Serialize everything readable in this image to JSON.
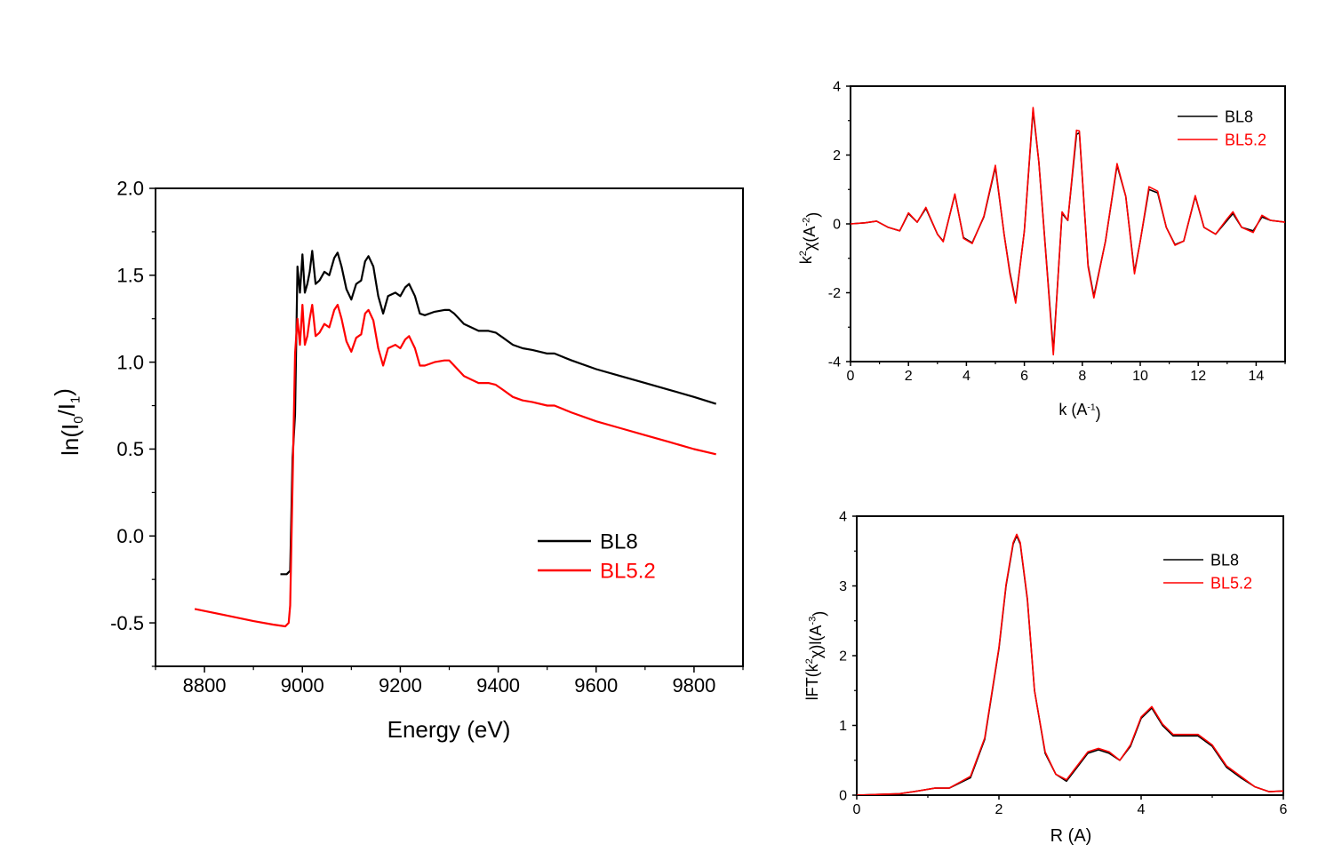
{
  "chart_data": [
    {
      "type": "line",
      "title": "",
      "xlabel": "Energy (eV)",
      "ylabel_parts": [
        "ln(I",
        "0",
        "/I",
        "1",
        ")"
      ],
      "xlim": [
        8700,
        9900
      ],
      "ylim": [
        -0.75,
        2.0
      ],
      "xticks": [
        "8800",
        "9000",
        "9200",
        "9400",
        "9600",
        "9800"
      ],
      "yticks": [
        "-0.5",
        "0.0",
        "0.5",
        "1.0",
        "1.5",
        "2.0"
      ],
      "legend_position": "bottom-right",
      "series": [
        {
          "name": "BL8",
          "color": "#000000",
          "x": [
            8955,
            8968,
            8975,
            8980,
            8985,
            8990,
            8995,
            9000,
            9005,
            9010,
            9015,
            9020,
            9027,
            9035,
            9045,
            9055,
            9065,
            9072,
            9080,
            9090,
            9100,
            9110,
            9120,
            9128,
            9135,
            9145,
            9155,
            9165,
            9175,
            9190,
            9200,
            9210,
            9218,
            9230,
            9240,
            9250,
            9270,
            9290,
            9300,
            9310,
            9320,
            9330,
            9345,
            9360,
            9380,
            9395,
            9410,
            9430,
            9450,
            9470,
            9500,
            9515,
            9550,
            9600,
            9650,
            9700,
            9750,
            9800,
            9845
          ],
          "y": [
            -0.22,
            -0.22,
            -0.2,
            0.45,
            0.7,
            1.55,
            1.4,
            1.62,
            1.4,
            1.45,
            1.52,
            1.64,
            1.45,
            1.47,
            1.52,
            1.5,
            1.6,
            1.63,
            1.55,
            1.42,
            1.36,
            1.45,
            1.47,
            1.58,
            1.61,
            1.55,
            1.38,
            1.28,
            1.38,
            1.4,
            1.38,
            1.43,
            1.45,
            1.38,
            1.28,
            1.27,
            1.29,
            1.3,
            1.3,
            1.28,
            1.25,
            1.22,
            1.2,
            1.18,
            1.18,
            1.17,
            1.14,
            1.1,
            1.08,
            1.07,
            1.05,
            1.05,
            1.01,
            0.96,
            0.92,
            0.88,
            0.84,
            0.8,
            0.76
          ]
        },
        {
          "name": "BL5.2",
          "color": "#ff0000",
          "x": [
            8780,
            8850,
            8900,
            8940,
            8965,
            8972,
            8975,
            8980,
            8985,
            8990,
            8995,
            9000,
            9005,
            9010,
            9015,
            9020,
            9027,
            9035,
            9045,
            9055,
            9065,
            9072,
            9080,
            9090,
            9100,
            9110,
            9120,
            9128,
            9135,
            9145,
            9155,
            9165,
            9175,
            9190,
            9200,
            9210,
            9218,
            9230,
            9240,
            9250,
            9270,
            9290,
            9300,
            9310,
            9320,
            9330,
            9345,
            9360,
            9380,
            9395,
            9410,
            9430,
            9450,
            9470,
            9500,
            9515,
            9550,
            9600,
            9650,
            9700,
            9750,
            9800,
            9845
          ],
          "y": [
            -0.42,
            -0.46,
            -0.49,
            -0.51,
            -0.52,
            -0.5,
            -0.4,
            0.3,
            1.05,
            1.25,
            1.1,
            1.33,
            1.1,
            1.15,
            1.25,
            1.33,
            1.15,
            1.17,
            1.22,
            1.2,
            1.3,
            1.33,
            1.25,
            1.12,
            1.06,
            1.14,
            1.16,
            1.28,
            1.3,
            1.24,
            1.08,
            0.98,
            1.08,
            1.1,
            1.08,
            1.13,
            1.15,
            1.08,
            0.98,
            0.98,
            1.0,
            1.01,
            1.01,
            0.98,
            0.95,
            0.92,
            0.9,
            0.88,
            0.88,
            0.87,
            0.84,
            0.8,
            0.78,
            0.77,
            0.75,
            0.75,
            0.71,
            0.66,
            0.62,
            0.58,
            0.54,
            0.5,
            0.47
          ]
        }
      ]
    },
    {
      "type": "line",
      "title": "",
      "xlabel_parts": [
        "k (A",
        "-1",
        ")"
      ],
      "ylabel_parts": [
        "k",
        "2",
        "χ(A",
        "-2",
        ")"
      ],
      "xlim": [
        0,
        15
      ],
      "ylim": [
        -4,
        4
      ],
      "xticks": [
        "0",
        "2",
        "4",
        "6",
        "8",
        "10",
        "12",
        "14"
      ],
      "yticks": [
        "-4",
        "-2",
        "0",
        "2",
        "4"
      ],
      "legend_position": "top-right",
      "series": [
        {
          "name": "BL8",
          "color": "#000000",
          "x": [
            0,
            0.5,
            0.9,
            1.3,
            1.7,
            2.0,
            2.3,
            2.6,
            3.0,
            3.2,
            3.6,
            3.9,
            4.2,
            4.6,
            5.0,
            5.3,
            5.5,
            5.7,
            6.0,
            6.3,
            6.5,
            6.8,
            7.0,
            7.3,
            7.5,
            7.8,
            7.9,
            8.2,
            8.4,
            8.8,
            9.2,
            9.5,
            9.8,
            10.0,
            10.3,
            10.6,
            10.9,
            11.2,
            11.5,
            11.9,
            12.2,
            12.6,
            13.0,
            13.2,
            13.5,
            13.9,
            14.2,
            14.5,
            15.0
          ],
          "y": [
            0,
            0.03,
            0.08,
            -0.1,
            -0.2,
            0.3,
            0.05,
            0.45,
            -0.3,
            -0.5,
            0.85,
            -0.4,
            -0.55,
            0.2,
            1.65,
            -0.3,
            -1.4,
            -2.25,
            -0.2,
            3.3,
            1.8,
            -1.5,
            -3.7,
            0.3,
            0.1,
            2.6,
            2.65,
            -1.2,
            -2.1,
            -0.5,
            1.7,
            0.8,
            -1.4,
            -0.5,
            1.0,
            0.9,
            -0.1,
            -0.6,
            -0.5,
            0.8,
            -0.1,
            -0.3,
            0.1,
            0.3,
            -0.1,
            -0.2,
            0.2,
            0.1,
            0.05
          ]
        },
        {
          "name": "BL5.2",
          "color": "#ff0000",
          "x": [
            0,
            0.5,
            0.9,
            1.3,
            1.7,
            2.0,
            2.3,
            2.6,
            3.0,
            3.2,
            3.6,
            3.9,
            4.2,
            4.6,
            5.0,
            5.3,
            5.5,
            5.7,
            6.0,
            6.3,
            6.5,
            6.8,
            7.0,
            7.3,
            7.5,
            7.8,
            7.9,
            8.2,
            8.4,
            8.8,
            9.2,
            9.5,
            9.8,
            10.0,
            10.3,
            10.6,
            10.9,
            11.2,
            11.5,
            11.9,
            12.2,
            12.6,
            13.0,
            13.2,
            13.5,
            13.9,
            14.2,
            14.5,
            15.0
          ],
          "y": [
            0,
            0.03,
            0.08,
            -0.1,
            -0.2,
            0.32,
            0.05,
            0.48,
            -0.3,
            -0.52,
            0.87,
            -0.42,
            -0.57,
            0.22,
            1.7,
            -0.3,
            -1.45,
            -2.3,
            -0.2,
            3.38,
            1.8,
            -1.55,
            -3.8,
            0.35,
            0.1,
            2.72,
            2.7,
            -1.25,
            -2.15,
            -0.5,
            1.75,
            0.8,
            -1.45,
            -0.5,
            1.08,
            0.95,
            -0.1,
            -0.62,
            -0.5,
            0.82,
            -0.1,
            -0.3,
            0.15,
            0.35,
            -0.1,
            -0.25,
            0.25,
            0.1,
            0.05
          ]
        }
      ]
    },
    {
      "type": "line",
      "title": "",
      "xlabel": "R (A)",
      "ylabel_parts": [
        "lFT(k",
        "2",
        "χ)l(A",
        "-3",
        ")"
      ],
      "xlim": [
        0,
        6
      ],
      "ylim": [
        0,
        4
      ],
      "xticks": [
        "0",
        "2",
        "4",
        "6"
      ],
      "yticks": [
        "0",
        "1",
        "2",
        "3",
        "4"
      ],
      "legend_position": "top-right",
      "series": [
        {
          "name": "BL8",
          "color": "#000000",
          "x": [
            0,
            0.3,
            0.6,
            0.8,
            1.1,
            1.3,
            1.6,
            1.8,
            2.0,
            2.1,
            2.2,
            2.25,
            2.3,
            2.4,
            2.5,
            2.65,
            2.8,
            2.95,
            3.1,
            3.25,
            3.4,
            3.55,
            3.7,
            3.85,
            4.0,
            4.15,
            4.3,
            4.45,
            4.6,
            4.8,
            5.0,
            5.2,
            5.4,
            5.6,
            5.8,
            6.0
          ],
          "y": [
            0,
            0.01,
            0.02,
            0.05,
            0.1,
            0.1,
            0.25,
            0.8,
            2.1,
            3.0,
            3.6,
            3.72,
            3.6,
            2.8,
            1.5,
            0.6,
            0.3,
            0.2,
            0.4,
            0.6,
            0.65,
            0.6,
            0.5,
            0.7,
            1.1,
            1.25,
            1.0,
            0.85,
            0.85,
            0.85,
            0.7,
            0.4,
            0.25,
            0.12,
            0.05,
            0.06
          ]
        },
        {
          "name": "BL5.2",
          "color": "#ff0000",
          "x": [
            0,
            0.3,
            0.6,
            0.8,
            1.1,
            1.3,
            1.6,
            1.8,
            2.0,
            2.1,
            2.2,
            2.25,
            2.3,
            2.4,
            2.5,
            2.65,
            2.8,
            2.95,
            3.1,
            3.25,
            3.4,
            3.55,
            3.7,
            3.85,
            4.0,
            4.15,
            4.3,
            4.45,
            4.6,
            4.8,
            5.0,
            5.2,
            5.4,
            5.6,
            5.8,
            6.0
          ],
          "y": [
            0,
            0.01,
            0.02,
            0.05,
            0.1,
            0.1,
            0.27,
            0.82,
            2.12,
            3.02,
            3.62,
            3.74,
            3.62,
            2.82,
            1.5,
            0.62,
            0.3,
            0.22,
            0.42,
            0.62,
            0.67,
            0.62,
            0.5,
            0.72,
            1.12,
            1.27,
            1.02,
            0.87,
            0.87,
            0.87,
            0.72,
            0.42,
            0.27,
            0.12,
            0.05,
            0.06
          ]
        }
      ]
    }
  ]
}
